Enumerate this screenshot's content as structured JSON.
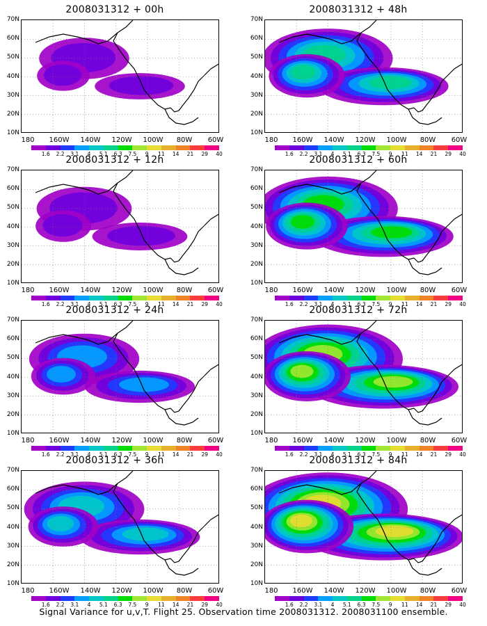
{
  "caption": "Signal Variance for u,v,T. Flight 25. Observation time 2008031312. 2008031100 ensemble.",
  "lat_labels": [
    "70N",
    "60N",
    "50N",
    "40N",
    "30N",
    "20N",
    "10N"
  ],
  "lon_labels": [
    "180",
    "160W",
    "140W",
    "120W",
    "100W",
    "80W",
    "60W"
  ],
  "colorbar": {
    "colors": [
      "#a000c8",
      "#6e00dc",
      "#1e3cff",
      "#00a0ff",
      "#00c8c8",
      "#00d28c",
      "#00dc00",
      "#a0e632",
      "#e6dc32",
      "#e6af2d",
      "#f08228",
      "#fa3c3c",
      "#f00082"
    ],
    "labels": [
      "1.6",
      "2.2",
      "3.1",
      "4",
      "5.1",
      "6.3",
      "7.5",
      "9",
      "11",
      "14",
      "21",
      "29",
      "40"
    ]
  },
  "panels": [
    {
      "title": "2008031312 + 00h",
      "intensity": 0.15
    },
    {
      "title": "2008031312 + 48h",
      "intensity": 0.55
    },
    {
      "title": "2008031312 + 12h",
      "intensity": 0.2
    },
    {
      "title": "2008031312 + 60h",
      "intensity": 0.65
    },
    {
      "title": "2008031312 + 24h",
      "intensity": 0.35
    },
    {
      "title": "2008031312 + 72h",
      "intensity": 0.75
    },
    {
      "title": "2008031312 + 36h",
      "intensity": 0.45
    },
    {
      "title": "2008031312 + 84h",
      "intensity": 0.85
    }
  ]
}
